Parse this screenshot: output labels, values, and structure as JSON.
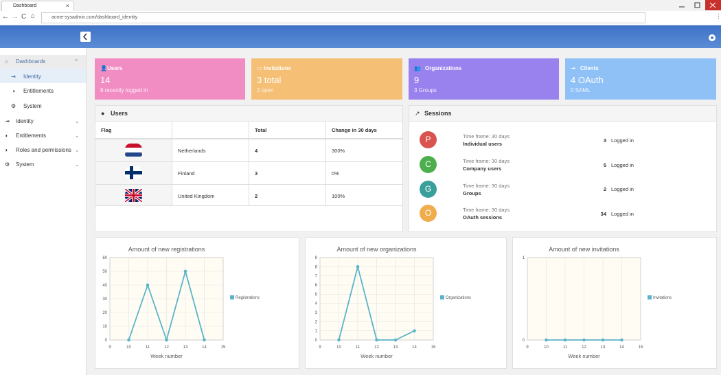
{
  "browser": {
    "tab_title": "Dashboard",
    "url": "acme-sysadmin.com/dashboard_identity"
  },
  "sidebar": {
    "items": [
      "Dashboards",
      "Identity",
      "Entitlements",
      "System",
      "Identity",
      "Entitlements",
      "Roles and permissions",
      "System"
    ]
  },
  "stat_cards": [
    {
      "title": "Users",
      "value": "14",
      "subtitle": "8 recently logged in"
    },
    {
      "title": "Invitations",
      "value": "3 total",
      "subtitle": "2 open"
    },
    {
      "title": "Organizations",
      "value": "9",
      "subtitle": "3 Groups"
    },
    {
      "title": "Clients",
      "value": "4 OAuth",
      "subtitle": "0 SAML"
    }
  ],
  "users_table": {
    "title": "Users",
    "headers": [
      "Flag",
      "Total",
      "Change in 30 days"
    ],
    "rows": [
      {
        "country": "Netherlands",
        "total": "4",
        "change": "300%"
      },
      {
        "country": "Finland",
        "total": "3",
        "change": "0%"
      },
      {
        "country": "United Kingdom",
        "total": "2",
        "change": "100%"
      }
    ]
  },
  "sessions": {
    "title": "Sessions",
    "items": [
      {
        "initial": "P",
        "timeframe": "Time frame: 30 days",
        "label": "Individual users",
        "count": "3",
        "status": "Logged in"
      },
      {
        "initial": "C",
        "timeframe": "Time frame: 30 days",
        "label": "Company users",
        "count": "5",
        "status": "Logged in"
      },
      {
        "initial": "G",
        "timeframe": "Time frame: 30 days",
        "label": "Groups",
        "count": "2",
        "status": "Logged in"
      },
      {
        "initial": "O",
        "timeframe": "Time frame: 30 days",
        "label": "OAuth sessions",
        "count": "34",
        "status": "Logged in"
      }
    ]
  },
  "chart_data": [
    {
      "type": "line",
      "title": "Amount of new registrations",
      "x_label": "Week number",
      "x": [
        10,
        11,
        12,
        13,
        14
      ],
      "xlim": [
        9,
        15
      ],
      "xticks": [
        9,
        10,
        11,
        12,
        13,
        14,
        15
      ],
      "ylim": [
        0,
        60
      ],
      "yticks": [
        0,
        10,
        20,
        30,
        40,
        50,
        60
      ],
      "grid": true,
      "series": [
        {
          "name": "Registrations",
          "color": "#5bb3c9",
          "values": [
            0,
            40,
            0,
            50,
            0
          ]
        }
      ]
    },
    {
      "type": "line",
      "title": "Amount of new organizations",
      "x_label": "Week number",
      "x": [
        10,
        11,
        12,
        13,
        14
      ],
      "xlim": [
        9,
        15
      ],
      "xticks": [
        9,
        10,
        11,
        12,
        13,
        14,
        15
      ],
      "ylim": [
        0,
        9
      ],
      "yticks": [
        0,
        1,
        2,
        3,
        4,
        5,
        6,
        7,
        8,
        9
      ],
      "grid": true,
      "series": [
        {
          "name": "Organizations",
          "color": "#5bb3c9",
          "values": [
            0,
            8,
            0,
            0,
            1
          ]
        }
      ]
    },
    {
      "type": "line",
      "title": "Amount of new invitations",
      "x_label": "Week number",
      "x": [
        10,
        11,
        12,
        13,
        14
      ],
      "xlim": [
        9,
        15
      ],
      "xticks": [
        9,
        10,
        11,
        12,
        13,
        14,
        15
      ],
      "ylim": [
        0,
        1
      ],
      "yticks": [
        0,
        1
      ],
      "grid": true,
      "series": [
        {
          "name": "Invitations",
          "color": "#5bb3c9",
          "values": [
            0,
            0,
            0,
            0,
            0
          ]
        }
      ]
    }
  ]
}
